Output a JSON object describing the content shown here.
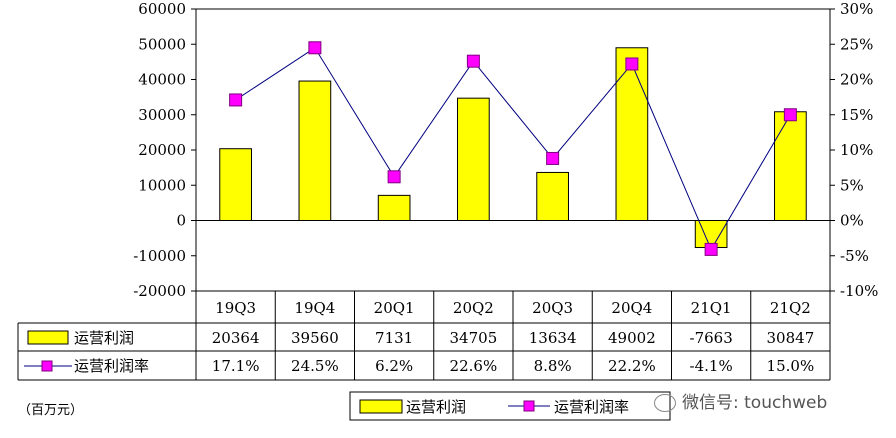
{
  "chart_data": {
    "type": "bar+line",
    "categories": [
      "19Q3",
      "19Q4",
      "20Q1",
      "20Q2",
      "20Q3",
      "20Q4",
      "21Q1",
      "21Q2"
    ],
    "series": [
      {
        "name": "运营利润",
        "type": "bar",
        "axis": "left",
        "values": [
          20364,
          39560,
          7131,
          34705,
          13634,
          49002,
          -7663,
          30847
        ],
        "color": "#ffff00"
      },
      {
        "name": "运营利润率",
        "type": "line",
        "axis": "right",
        "values": [
          17.1,
          24.5,
          6.2,
          22.6,
          8.8,
          22.2,
          -4.1,
          15.0
        ],
        "labels": [
          "17.1%",
          "24.5%",
          "6.2%",
          "22.6%",
          "8.8%",
          "22.2%",
          "-4.1%",
          "15.0%"
        ],
        "color": "#ff00ff",
        "line_color": "#000080"
      }
    ],
    "left_axis": {
      "ylim": [
        -20000,
        60000
      ],
      "ticks": [
        "60000",
        "50000",
        "40000",
        "30000",
        "20000",
        "10000",
        "0",
        "-10000",
        "-20000"
      ]
    },
    "right_axis": {
      "ylim": [
        -10,
        30
      ],
      "ticks": [
        "30%",
        "25%",
        "20%",
        "15%",
        "10%",
        "5%",
        "0%",
        "-5%",
        "-10%"
      ]
    },
    "grid": false,
    "legend": {
      "placement": "bottom",
      "items": [
        "运营利润",
        "运营利润率"
      ]
    }
  },
  "unit_note": "（百万元）",
  "watermark": "微信号: touchweb"
}
